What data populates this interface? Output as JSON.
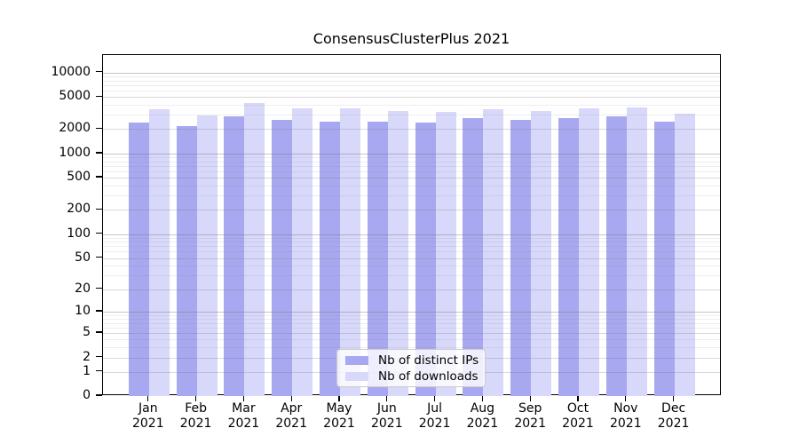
{
  "chart_data": {
    "type": "bar",
    "title": "ConsensusClusterPlus 2021",
    "categories": [
      "Jan",
      "Feb",
      "Mar",
      "Apr",
      "May",
      "Jun",
      "Jul",
      "Aug",
      "Sep",
      "Oct",
      "Nov",
      "Dec"
    ],
    "category_year": "2021",
    "series": [
      {
        "name": "Nb of distinct IPs",
        "color": "#a8a8f0",
        "values": [
          2400,
          2170,
          2860,
          2600,
          2480,
          2460,
          2400,
          2720,
          2610,
          2760,
          2860,
          2480
        ]
      },
      {
        "name": "Nb of downloads",
        "color": "#d8d8fa",
        "values": [
          3500,
          2980,
          4220,
          3650,
          3650,
          3360,
          3250,
          3530,
          3330,
          3650,
          3740,
          3110
        ]
      }
    ],
    "yscale": "log1p",
    "yticks": [
      0,
      1,
      2,
      5,
      10,
      20,
      50,
      100,
      200,
      500,
      1000,
      2000,
      5000,
      10000
    ],
    "ylim": [
      0,
      16500
    ],
    "xlabel": "",
    "ylabel": "",
    "grid": true,
    "legend_position": "bottom-center"
  },
  "colors": {
    "grid_minor": "rgba(120,120,120,0.13)",
    "grid_labeled": "rgba(120,120,120,0.28)",
    "grid_decade": "rgba(120,120,120,0.42)",
    "axis": "#000000",
    "background": "#ffffff"
  }
}
